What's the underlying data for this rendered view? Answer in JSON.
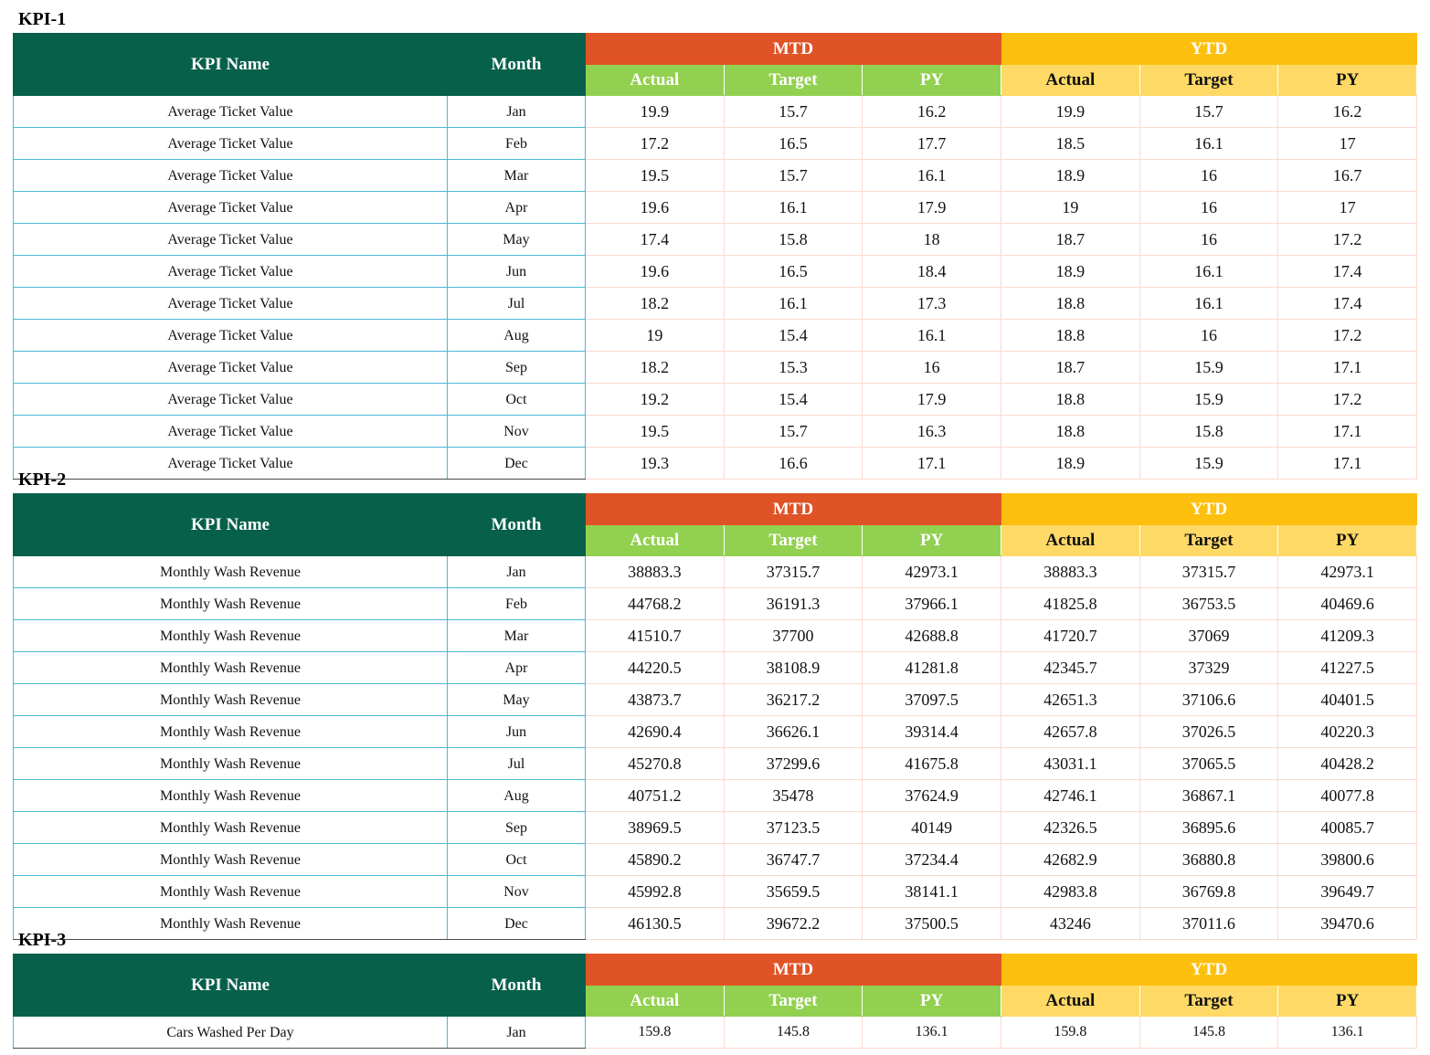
{
  "headers": {
    "kpi_name": "KPI Name",
    "month": "Month",
    "mtd": "MTD",
    "ytd": "YTD",
    "actual": "Actual",
    "target": "Target",
    "py": "PY"
  },
  "colors": {
    "header_green": "#06604a",
    "mtd_orange": "#e05326",
    "ytd_yellow": "#fec00f",
    "mtd_sub_green": "#92d050",
    "ytd_sub_yellow": "#fed966",
    "name_border_blue": "#4bb8d8"
  },
  "kpis": [
    {
      "title": "KPI-1",
      "rows": [
        {
          "name": "Average Ticket Value",
          "month": "Jan",
          "mtd_actual": "19.9",
          "mtd_target": "15.7",
          "mtd_py": "16.2",
          "ytd_actual": "19.9",
          "ytd_target": "15.7",
          "ytd_py": "16.2"
        },
        {
          "name": "Average Ticket Value",
          "month": "Feb",
          "mtd_actual": "17.2",
          "mtd_target": "16.5",
          "mtd_py": "17.7",
          "ytd_actual": "18.5",
          "ytd_target": "16.1",
          "ytd_py": "17"
        },
        {
          "name": "Average Ticket Value",
          "month": "Mar",
          "mtd_actual": "19.5",
          "mtd_target": "15.7",
          "mtd_py": "16.1",
          "ytd_actual": "18.9",
          "ytd_target": "16",
          "ytd_py": "16.7"
        },
        {
          "name": "Average Ticket Value",
          "month": "Apr",
          "mtd_actual": "19.6",
          "mtd_target": "16.1",
          "mtd_py": "17.9",
          "ytd_actual": "19",
          "ytd_target": "16",
          "ytd_py": "17"
        },
        {
          "name": "Average Ticket Value",
          "month": "May",
          "mtd_actual": "17.4",
          "mtd_target": "15.8",
          "mtd_py": "18",
          "ytd_actual": "18.7",
          "ytd_target": "16",
          "ytd_py": "17.2"
        },
        {
          "name": "Average Ticket Value",
          "month": "Jun",
          "mtd_actual": "19.6",
          "mtd_target": "16.5",
          "mtd_py": "18.4",
          "ytd_actual": "18.9",
          "ytd_target": "16.1",
          "ytd_py": "17.4"
        },
        {
          "name": "Average Ticket Value",
          "month": "Jul",
          "mtd_actual": "18.2",
          "mtd_target": "16.1",
          "mtd_py": "17.3",
          "ytd_actual": "18.8",
          "ytd_target": "16.1",
          "ytd_py": "17.4"
        },
        {
          "name": "Average Ticket Value",
          "month": "Aug",
          "mtd_actual": "19",
          "mtd_target": "15.4",
          "mtd_py": "16.1",
          "ytd_actual": "18.8",
          "ytd_target": "16",
          "ytd_py": "17.2"
        },
        {
          "name": "Average Ticket Value",
          "month": "Sep",
          "mtd_actual": "18.2",
          "mtd_target": "15.3",
          "mtd_py": "16",
          "ytd_actual": "18.7",
          "ytd_target": "15.9",
          "ytd_py": "17.1"
        },
        {
          "name": "Average Ticket Value",
          "month": "Oct",
          "mtd_actual": "19.2",
          "mtd_target": "15.4",
          "mtd_py": "17.9",
          "ytd_actual": "18.8",
          "ytd_target": "15.9",
          "ytd_py": "17.2"
        },
        {
          "name": "Average Ticket Value",
          "month": "Nov",
          "mtd_actual": "19.5",
          "mtd_target": "15.7",
          "mtd_py": "16.3",
          "ytd_actual": "18.8",
          "ytd_target": "15.8",
          "ytd_py": "17.1"
        },
        {
          "name": "Average Ticket Value",
          "month": "Dec",
          "mtd_actual": "19.3",
          "mtd_target": "16.6",
          "mtd_py": "17.1",
          "ytd_actual": "18.9",
          "ytd_target": "15.9",
          "ytd_py": "17.1"
        }
      ]
    },
    {
      "title": "KPI-2",
      "rows": [
        {
          "name": "Monthly Wash Revenue",
          "month": "Jan",
          "mtd_actual": "38883.3",
          "mtd_target": "37315.7",
          "mtd_py": "42973.1",
          "ytd_actual": "38883.3",
          "ytd_target": "37315.7",
          "ytd_py": "42973.1"
        },
        {
          "name": "Monthly Wash Revenue",
          "month": "Feb",
          "mtd_actual": "44768.2",
          "mtd_target": "36191.3",
          "mtd_py": "37966.1",
          "ytd_actual": "41825.8",
          "ytd_target": "36753.5",
          "ytd_py": "40469.6"
        },
        {
          "name": "Monthly Wash Revenue",
          "month": "Mar",
          "mtd_actual": "41510.7",
          "mtd_target": "37700",
          "mtd_py": "42688.8",
          "ytd_actual": "41720.7",
          "ytd_target": "37069",
          "ytd_py": "41209.3"
        },
        {
          "name": "Monthly Wash Revenue",
          "month": "Apr",
          "mtd_actual": "44220.5",
          "mtd_target": "38108.9",
          "mtd_py": "41281.8",
          "ytd_actual": "42345.7",
          "ytd_target": "37329",
          "ytd_py": "41227.5"
        },
        {
          "name": "Monthly Wash Revenue",
          "month": "May",
          "mtd_actual": "43873.7",
          "mtd_target": "36217.2",
          "mtd_py": "37097.5",
          "ytd_actual": "42651.3",
          "ytd_target": "37106.6",
          "ytd_py": "40401.5"
        },
        {
          "name": "Monthly Wash Revenue",
          "month": "Jun",
          "mtd_actual": "42690.4",
          "mtd_target": "36626.1",
          "mtd_py": "39314.4",
          "ytd_actual": "42657.8",
          "ytd_target": "37026.5",
          "ytd_py": "40220.3"
        },
        {
          "name": "Monthly Wash Revenue",
          "month": "Jul",
          "mtd_actual": "45270.8",
          "mtd_target": "37299.6",
          "mtd_py": "41675.8",
          "ytd_actual": "43031.1",
          "ytd_target": "37065.5",
          "ytd_py": "40428.2"
        },
        {
          "name": "Monthly Wash Revenue",
          "month": "Aug",
          "mtd_actual": "40751.2",
          "mtd_target": "35478",
          "mtd_py": "37624.9",
          "ytd_actual": "42746.1",
          "ytd_target": "36867.1",
          "ytd_py": "40077.8"
        },
        {
          "name": "Monthly Wash Revenue",
          "month": "Sep",
          "mtd_actual": "38969.5",
          "mtd_target": "37123.5",
          "mtd_py": "40149",
          "ytd_actual": "42326.5",
          "ytd_target": "36895.6",
          "ytd_py": "40085.7"
        },
        {
          "name": "Monthly Wash Revenue",
          "month": "Oct",
          "mtd_actual": "45890.2",
          "mtd_target": "36747.7",
          "mtd_py": "37234.4",
          "ytd_actual": "42682.9",
          "ytd_target": "36880.8",
          "ytd_py": "39800.6"
        },
        {
          "name": "Monthly Wash Revenue",
          "month": "Nov",
          "mtd_actual": "45992.8",
          "mtd_target": "35659.5",
          "mtd_py": "38141.1",
          "ytd_actual": "42983.8",
          "ytd_target": "36769.8",
          "ytd_py": "39649.7"
        },
        {
          "name": "Monthly Wash Revenue",
          "month": "Dec",
          "mtd_actual": "46130.5",
          "mtd_target": "39672.2",
          "mtd_py": "37500.5",
          "ytd_actual": "43246",
          "ytd_target": "37011.6",
          "ytd_py": "39470.6"
        }
      ]
    },
    {
      "title": "KPI-3",
      "rows": [
        {
          "name": "Cars Washed Per Day",
          "month": "Jan",
          "mtd_actual": "159.8",
          "mtd_target": "145.8",
          "mtd_py": "136.1",
          "ytd_actual": "159.8",
          "ytd_target": "145.8",
          "ytd_py": "136.1"
        }
      ]
    }
  ]
}
